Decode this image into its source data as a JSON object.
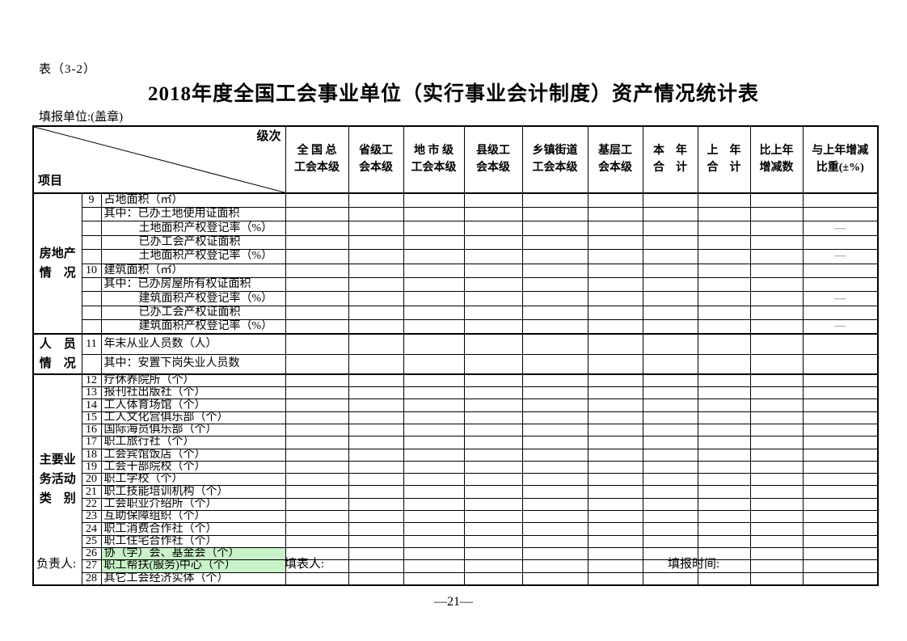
{
  "meta": {
    "table_tag": "表（3-2）",
    "title": "2018年度全国工会事业单位（实行事业会计制度）资产情况统计表",
    "unit_label": "填报单位:(盖章)"
  },
  "colors": {
    "highlight_green": "#c9f2c9",
    "dash_gray": "#777777",
    "border_black": "#000000"
  },
  "footer": {
    "responsible_label": "负责人:",
    "preparer_label": "填表人:",
    "time_label": "填报时间:",
    "page_number": "—21—"
  },
  "table": {
    "corner": {
      "top_right": "级次",
      "bottom_left": "项目"
    },
    "columns": [
      "全 国 总\n工会本级",
      "省级工\n会本级",
      "地 市 级\n工会本级",
      "县级工\n会本级",
      "乡镇街道\n工会本级",
      "基层工\n会本级",
      "本　年\n合　计",
      "上　年\n合　计",
      "比上年\n增减数",
      "与上年增减\n比重(±%)"
    ],
    "groups": [
      {
        "label": "房地产\n情　况",
        "rows": [
          {
            "no": "9",
            "label": "占地面积（㎡）",
            "indent": 0,
            "highlight": false,
            "cells": [
              "",
              "",
              "",
              "",
              "",
              "",
              "",
              "",
              "",
              ""
            ]
          },
          {
            "no": "",
            "label": "其中：已办土地使用证面积",
            "indent": 0,
            "highlight": false,
            "cells": [
              "",
              "",
              "",
              "",
              "",
              "",
              "",
              "",
              "",
              ""
            ]
          },
          {
            "no": "",
            "label": "土地面积产权登记率（%）",
            "indent": 1,
            "highlight": false,
            "cells": [
              "",
              "",
              "",
              "",
              "",
              "",
              "",
              "",
              "",
              "—"
            ]
          },
          {
            "no": "",
            "label": "已办工会产权证面积",
            "indent": 1,
            "highlight": false,
            "cells": [
              "",
              "",
              "",
              "",
              "",
              "",
              "",
              "",
              "",
              ""
            ]
          },
          {
            "no": "",
            "label": "土地面积产权登记率（%）",
            "indent": 1,
            "highlight": false,
            "cells": [
              "",
              "",
              "",
              "",
              "",
              "",
              "",
              "",
              "",
              "—"
            ]
          },
          {
            "no": "10",
            "label": "建筑面积（㎡）",
            "indent": 0,
            "highlight": false,
            "cells": [
              "",
              "",
              "",
              "",
              "",
              "",
              "",
              "",
              "",
              ""
            ]
          },
          {
            "no": "",
            "label": "其中：已办房屋所有权证面积",
            "indent": 0,
            "highlight": false,
            "cells": [
              "",
              "",
              "",
              "",
              "",
              "",
              "",
              "",
              "",
              ""
            ]
          },
          {
            "no": "",
            "label": "建筑面积产权登记率（%）",
            "indent": 1,
            "highlight": false,
            "cells": [
              "",
              "",
              "",
              "",
              "",
              "",
              "",
              "",
              "",
              "—"
            ]
          },
          {
            "no": "",
            "label": "已办工会产权证面积",
            "indent": 1,
            "highlight": false,
            "cells": [
              "",
              "",
              "",
              "",
              "",
              "",
              "",
              "",
              "",
              ""
            ]
          },
          {
            "no": "",
            "label": "建筑面积产权登记率（%）",
            "indent": 1,
            "highlight": false,
            "cells": [
              "",
              "",
              "",
              "",
              "",
              "",
              "",
              "",
              "",
              "—"
            ]
          }
        ]
      },
      {
        "label": "人　员\n情　况",
        "rows": [
          {
            "no": "11",
            "label": "年末从业人员数（人）",
            "indent": 0,
            "highlight": false,
            "cells": [
              "",
              "",
              "",
              "",
              "",
              "",
              "",
              "",
              "",
              ""
            ]
          },
          {
            "no": "",
            "label": "其中：安置下岗失业人员数",
            "indent": 0,
            "highlight": false,
            "cells": [
              "",
              "",
              "",
              "",
              "",
              "",
              "",
              "",
              "",
              ""
            ]
          }
        ]
      },
      {
        "label": "主要业\n务活动\n类　别",
        "rows": [
          {
            "no": "12",
            "label": "疗休养院所（个）",
            "indent": 0,
            "highlight": false,
            "cells": [
              "",
              "",
              "",
              "",
              "",
              "",
              "",
              "",
              "",
              ""
            ]
          },
          {
            "no": "13",
            "label": "报刊社出版社（个）",
            "indent": 0,
            "highlight": false,
            "cells": [
              "",
              "",
              "",
              "",
              "",
              "",
              "",
              "",
              "",
              ""
            ]
          },
          {
            "no": "14",
            "label": "工人体育场馆（个）",
            "indent": 0,
            "highlight": false,
            "cells": [
              "",
              "",
              "",
              "",
              "",
              "",
              "",
              "",
              "",
              ""
            ]
          },
          {
            "no": "15",
            "label": "工人文化宫俱乐部（个）",
            "indent": 0,
            "highlight": false,
            "cells": [
              "",
              "",
              "",
              "",
              "",
              "",
              "",
              "",
              "",
              ""
            ]
          },
          {
            "no": "16",
            "label": "国际海员俱乐部（个）",
            "indent": 0,
            "highlight": false,
            "cells": [
              "",
              "",
              "",
              "",
              "",
              "",
              "",
              "",
              "",
              ""
            ]
          },
          {
            "no": "17",
            "label": "职工旅行社（个）",
            "indent": 0,
            "highlight": false,
            "cells": [
              "",
              "",
              "",
              "",
              "",
              "",
              "",
              "",
              "",
              ""
            ]
          },
          {
            "no": "18",
            "label": "工会宾馆饭店（个）",
            "indent": 0,
            "highlight": false,
            "cells": [
              "",
              "",
              "",
              "",
              "",
              "",
              "",
              "",
              "",
              ""
            ]
          },
          {
            "no": "19",
            "label": "工会干部院校（个）",
            "indent": 0,
            "highlight": false,
            "cells": [
              "",
              "",
              "",
              "",
              "",
              "",
              "",
              "",
              "",
              ""
            ]
          },
          {
            "no": "20",
            "label": "职工学校（个）",
            "indent": 0,
            "highlight": false,
            "cells": [
              "",
              "",
              "",
              "",
              "",
              "",
              "",
              "",
              "",
              ""
            ]
          },
          {
            "no": "21",
            "label": "职工技能培训机构（个）",
            "indent": 0,
            "highlight": false,
            "cells": [
              "",
              "",
              "",
              "",
              "",
              "",
              "",
              "",
              "",
              ""
            ]
          },
          {
            "no": "22",
            "label": "工会职业介绍所（个）",
            "indent": 0,
            "highlight": false,
            "cells": [
              "",
              "",
              "",
              "",
              "",
              "",
              "",
              "",
              "",
              ""
            ]
          },
          {
            "no": "23",
            "label": "互助保障组织（个）",
            "indent": 0,
            "highlight": false,
            "cells": [
              "",
              "",
              "",
              "",
              "",
              "",
              "",
              "",
              "",
              ""
            ]
          },
          {
            "no": "24",
            "label": "职工消费合作社（个）",
            "indent": 0,
            "highlight": false,
            "cells": [
              "",
              "",
              "",
              "",
              "",
              "",
              "",
              "",
              "",
              ""
            ]
          },
          {
            "no": "25",
            "label": "职工住宅合作社（个）",
            "indent": 0,
            "highlight": false,
            "cells": [
              "",
              "",
              "",
              "",
              "",
              "",
              "",
              "",
              "",
              ""
            ]
          },
          {
            "no": "26",
            "label": "协（学）会、基金会（个）",
            "indent": 0,
            "highlight": true,
            "cells": [
              "",
              "",
              "",
              "",
              "",
              "",
              "",
              "",
              "",
              ""
            ]
          },
          {
            "no": "27",
            "label": "职工帮扶(服务)中心（个）",
            "indent": 0,
            "highlight": true,
            "cells": [
              "",
              "",
              "",
              "",
              "",
              "",
              "",
              "",
              "",
              ""
            ]
          },
          {
            "no": "28",
            "label": "其它工会经济实体（个）",
            "indent": 0,
            "highlight": false,
            "cells": [
              "",
              "",
              "",
              "",
              "",
              "",
              "",
              "",
              "",
              ""
            ]
          }
        ]
      }
    ]
  }
}
